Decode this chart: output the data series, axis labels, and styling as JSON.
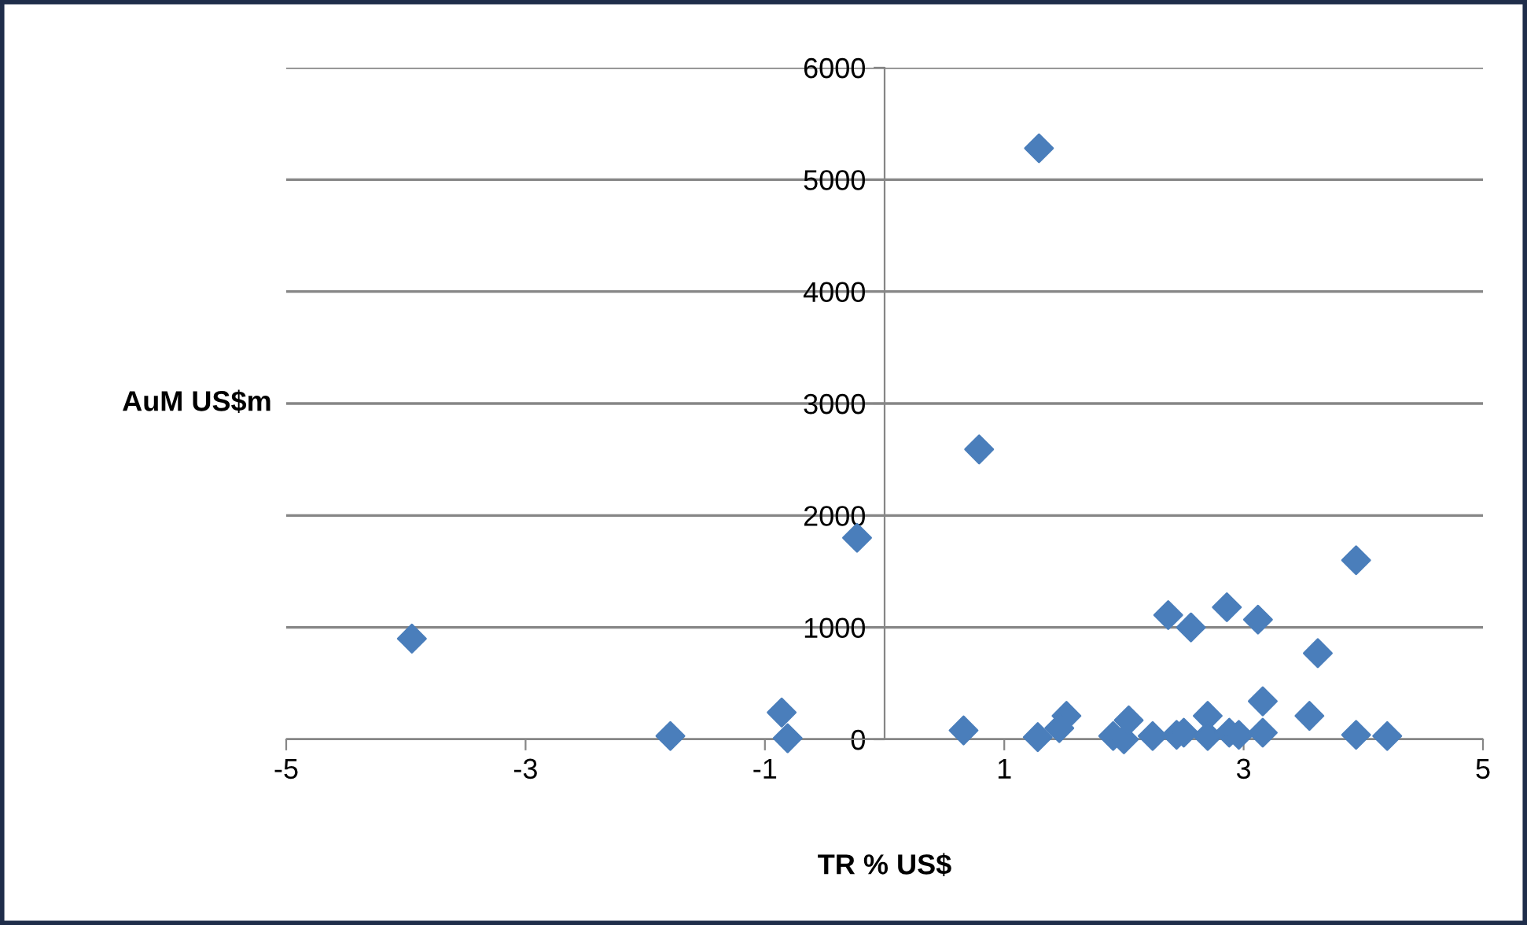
{
  "chart_data": {
    "type": "scatter",
    "xlabel": "TR % US$",
    "ylabel": "AuM US$m",
    "xlim": [
      -5,
      5
    ],
    "xticks": [
      -5,
      -3,
      -1,
      1,
      3,
      5
    ],
    "ylim": [
      0,
      6000
    ],
    "yticks": [
      0,
      1000,
      2000,
      3000,
      4000,
      5000,
      6000
    ],
    "grid": "y",
    "marker": "diamond",
    "legend": false,
    "series": [
      {
        "color": "#4a7ebb",
        "x": [
          -3.95,
          -1.79,
          -0.86,
          -0.81,
          -0.23,
          0.79,
          1.29,
          0.66,
          1.28,
          1.52,
          1.46,
          1.91,
          2.0,
          2.04,
          2.24,
          2.44,
          2.5,
          2.37,
          2.56,
          2.7,
          2.7,
          2.86,
          2.88,
          2.96,
          3.12,
          3.16,
          3.16,
          3.55,
          3.62,
          3.94,
          3.94,
          4.2
        ],
        "values": [
          900,
          30,
          240,
          10,
          1800,
          2590,
          5280,
          80,
          20,
          210,
          100,
          30,
          0,
          170,
          30,
          40,
          60,
          1110,
          1000,
          210,
          30,
          1180,
          60,
          40,
          1070,
          340,
          60,
          210,
          770,
          1600,
          40,
          30
        ]
      }
    ]
  }
}
